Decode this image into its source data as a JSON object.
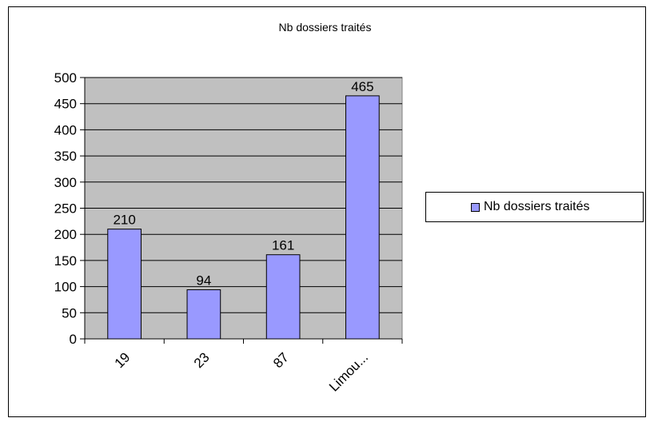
{
  "chart_data": {
    "type": "bar",
    "title": "Nb dossiers traités",
    "xlabel": "",
    "ylabel": "",
    "categories": [
      "19",
      "23",
      "87",
      "Limou..."
    ],
    "series": [
      {
        "name": "Nb dossiers traités",
        "values": [
          210,
          94,
          161,
          465
        ],
        "color": "#9999ff"
      }
    ],
    "ylim": [
      0,
      500
    ],
    "yticks": [
      0,
      50,
      100,
      150,
      200,
      250,
      300,
      350,
      400,
      450,
      500
    ],
    "grid": true,
    "plot_background": "#c0c0c0",
    "legend_position": "right",
    "data_labels": true
  }
}
